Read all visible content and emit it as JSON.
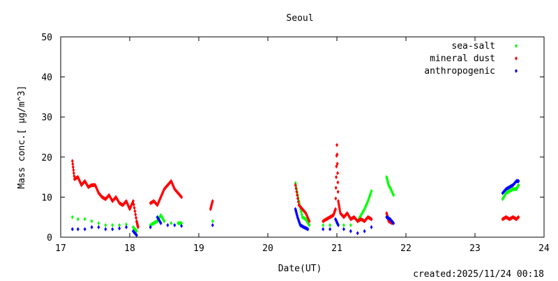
{
  "chart_data": {
    "type": "scatter",
    "title": "Seoul",
    "xlabel": "Date(UT)",
    "ylabel": "Mass conc.[ μg/m^3]",
    "xlim": [
      17,
      24
    ],
    "ylim": [
      0,
      50
    ],
    "xticks": [
      "17",
      "18",
      "19",
      "20",
      "21",
      "22",
      "23",
      "24"
    ],
    "yticks": [
      "0",
      "10",
      "20",
      "30",
      "40",
      "50"
    ],
    "grid": false,
    "legend_position": "top-right",
    "footer": "created:2025/11/24 00:18",
    "series": [
      {
        "name": "sea-salt",
        "color": "#00ff00",
        "points": [
          [
            17.17,
            5
          ],
          [
            17.25,
            4.5
          ],
          [
            17.35,
            4.5
          ],
          [
            17.45,
            4
          ],
          [
            17.55,
            3.5
          ],
          [
            17.65,
            3
          ],
          [
            17.75,
            3
          ],
          [
            17.85,
            3
          ],
          [
            17.95,
            3.2
          ],
          [
            18.05,
            2.5
          ],
          [
            18.1,
            1.5
          ],
          [
            18.3,
            3
          ],
          [
            18.35,
            3.5
          ],
          [
            18.4,
            4
          ],
          [
            18.45,
            5.5
          ],
          [
            18.5,
            4
          ],
          [
            18.6,
            3.5
          ],
          [
            18.7,
            3.5
          ],
          [
            18.75,
            3.5
          ],
          [
            19.2,
            4
          ],
          [
            20.4,
            13.5
          ],
          [
            20.45,
            9
          ],
          [
            20.5,
            5
          ],
          [
            20.55,
            4.5
          ],
          [
            20.6,
            3
          ],
          [
            20.8,
            3
          ],
          [
            20.9,
            3
          ],
          [
            21.0,
            3.5
          ],
          [
            21.1,
            3
          ],
          [
            21.2,
            3
          ],
          [
            21.3,
            4
          ],
          [
            21.35,
            5.5
          ],
          [
            21.4,
            7
          ],
          [
            21.45,
            9
          ],
          [
            21.5,
            11.5
          ],
          [
            21.72,
            15
          ],
          [
            21.75,
            13
          ],
          [
            21.78,
            12
          ],
          [
            21.82,
            10.5
          ],
          [
            23.4,
            9.5
          ],
          [
            23.45,
            11
          ],
          [
            23.5,
            11.5
          ],
          [
            23.55,
            12
          ],
          [
            23.6,
            12
          ],
          [
            23.63,
            13
          ]
        ]
      },
      {
        "name": "mineral dust",
        "color": "#ff0000",
        "points": [
          [
            17.17,
            19
          ],
          [
            17.2,
            14.5
          ],
          [
            17.25,
            15
          ],
          [
            17.3,
            13
          ],
          [
            17.35,
            14
          ],
          [
            17.4,
            12.5
          ],
          [
            17.45,
            13
          ],
          [
            17.5,
            13
          ],
          [
            17.55,
            11
          ],
          [
            17.6,
            10
          ],
          [
            17.65,
            9.5
          ],
          [
            17.7,
            10.5
          ],
          [
            17.75,
            9
          ],
          [
            17.8,
            10
          ],
          [
            17.85,
            8.5
          ],
          [
            17.9,
            8
          ],
          [
            17.95,
            9
          ],
          [
            18.0,
            7
          ],
          [
            18.05,
            9
          ],
          [
            18.1,
            4
          ],
          [
            18.12,
            2.5
          ],
          [
            18.3,
            8.5
          ],
          [
            18.35,
            9
          ],
          [
            18.4,
            8
          ],
          [
            18.45,
            10
          ],
          [
            18.5,
            12
          ],
          [
            18.55,
            13
          ],
          [
            18.6,
            14
          ],
          [
            18.65,
            12
          ],
          [
            18.7,
            11
          ],
          [
            18.75,
            10
          ],
          [
            19.17,
            7
          ],
          [
            19.2,
            9
          ],
          [
            20.4,
            13
          ],
          [
            20.45,
            8
          ],
          [
            20.5,
            7
          ],
          [
            20.55,
            6
          ],
          [
            20.6,
            4
          ],
          [
            20.8,
            4
          ],
          [
            20.85,
            4.5
          ],
          [
            20.9,
            5
          ],
          [
            20.95,
            5.5
          ],
          [
            20.98,
            7
          ],
          [
            21.0,
            23
          ],
          [
            21.02,
            9
          ],
          [
            21.05,
            6
          ],
          [
            21.1,
            5
          ],
          [
            21.15,
            6
          ],
          [
            21.2,
            4.5
          ],
          [
            21.25,
            5
          ],
          [
            21.3,
            4
          ],
          [
            21.35,
            4.5
          ],
          [
            21.4,
            4
          ],
          [
            21.45,
            5
          ],
          [
            21.5,
            4.5
          ],
          [
            21.72,
            6
          ],
          [
            21.75,
            4
          ],
          [
            21.8,
            3.5
          ],
          [
            23.4,
            4.5
          ],
          [
            23.45,
            5
          ],
          [
            23.5,
            4.5
          ],
          [
            23.55,
            5
          ],
          [
            23.6,
            4.5
          ],
          [
            23.63,
            5
          ]
        ]
      },
      {
        "name": "anthropogenic",
        "color": "#0000ff",
        "points": [
          [
            17.17,
            2
          ],
          [
            17.25,
            2
          ],
          [
            17.35,
            2
          ],
          [
            17.45,
            2.5
          ],
          [
            17.55,
            2.5
          ],
          [
            17.65,
            2
          ],
          [
            17.75,
            2
          ],
          [
            17.85,
            2.2
          ],
          [
            17.95,
            2.5
          ],
          [
            18.05,
            1.5
          ],
          [
            18.1,
            0.5
          ],
          [
            18.3,
            2.5
          ],
          [
            18.4,
            5
          ],
          [
            18.45,
            3.5
          ],
          [
            18.55,
            3
          ],
          [
            18.65,
            3
          ],
          [
            18.75,
            2.8
          ],
          [
            19.2,
            3
          ],
          [
            20.4,
            7
          ],
          [
            20.43,
            5
          ],
          [
            20.47,
            3
          ],
          [
            20.52,
            2.5
          ],
          [
            20.58,
            2
          ],
          [
            20.8,
            2
          ],
          [
            20.9,
            2
          ],
          [
            20.98,
            4.5
          ],
          [
            21.02,
            3
          ],
          [
            21.1,
            2
          ],
          [
            21.2,
            1.5
          ],
          [
            21.3,
            1
          ],
          [
            21.4,
            1.5
          ],
          [
            21.5,
            2.5
          ],
          [
            21.72,
            5
          ],
          [
            21.77,
            4.5
          ],
          [
            21.82,
            3.5
          ],
          [
            23.4,
            11
          ],
          [
            23.45,
            12
          ],
          [
            23.5,
            12.5
          ],
          [
            23.55,
            13
          ],
          [
            23.6,
            14
          ],
          [
            23.63,
            14
          ]
        ]
      }
    ]
  }
}
